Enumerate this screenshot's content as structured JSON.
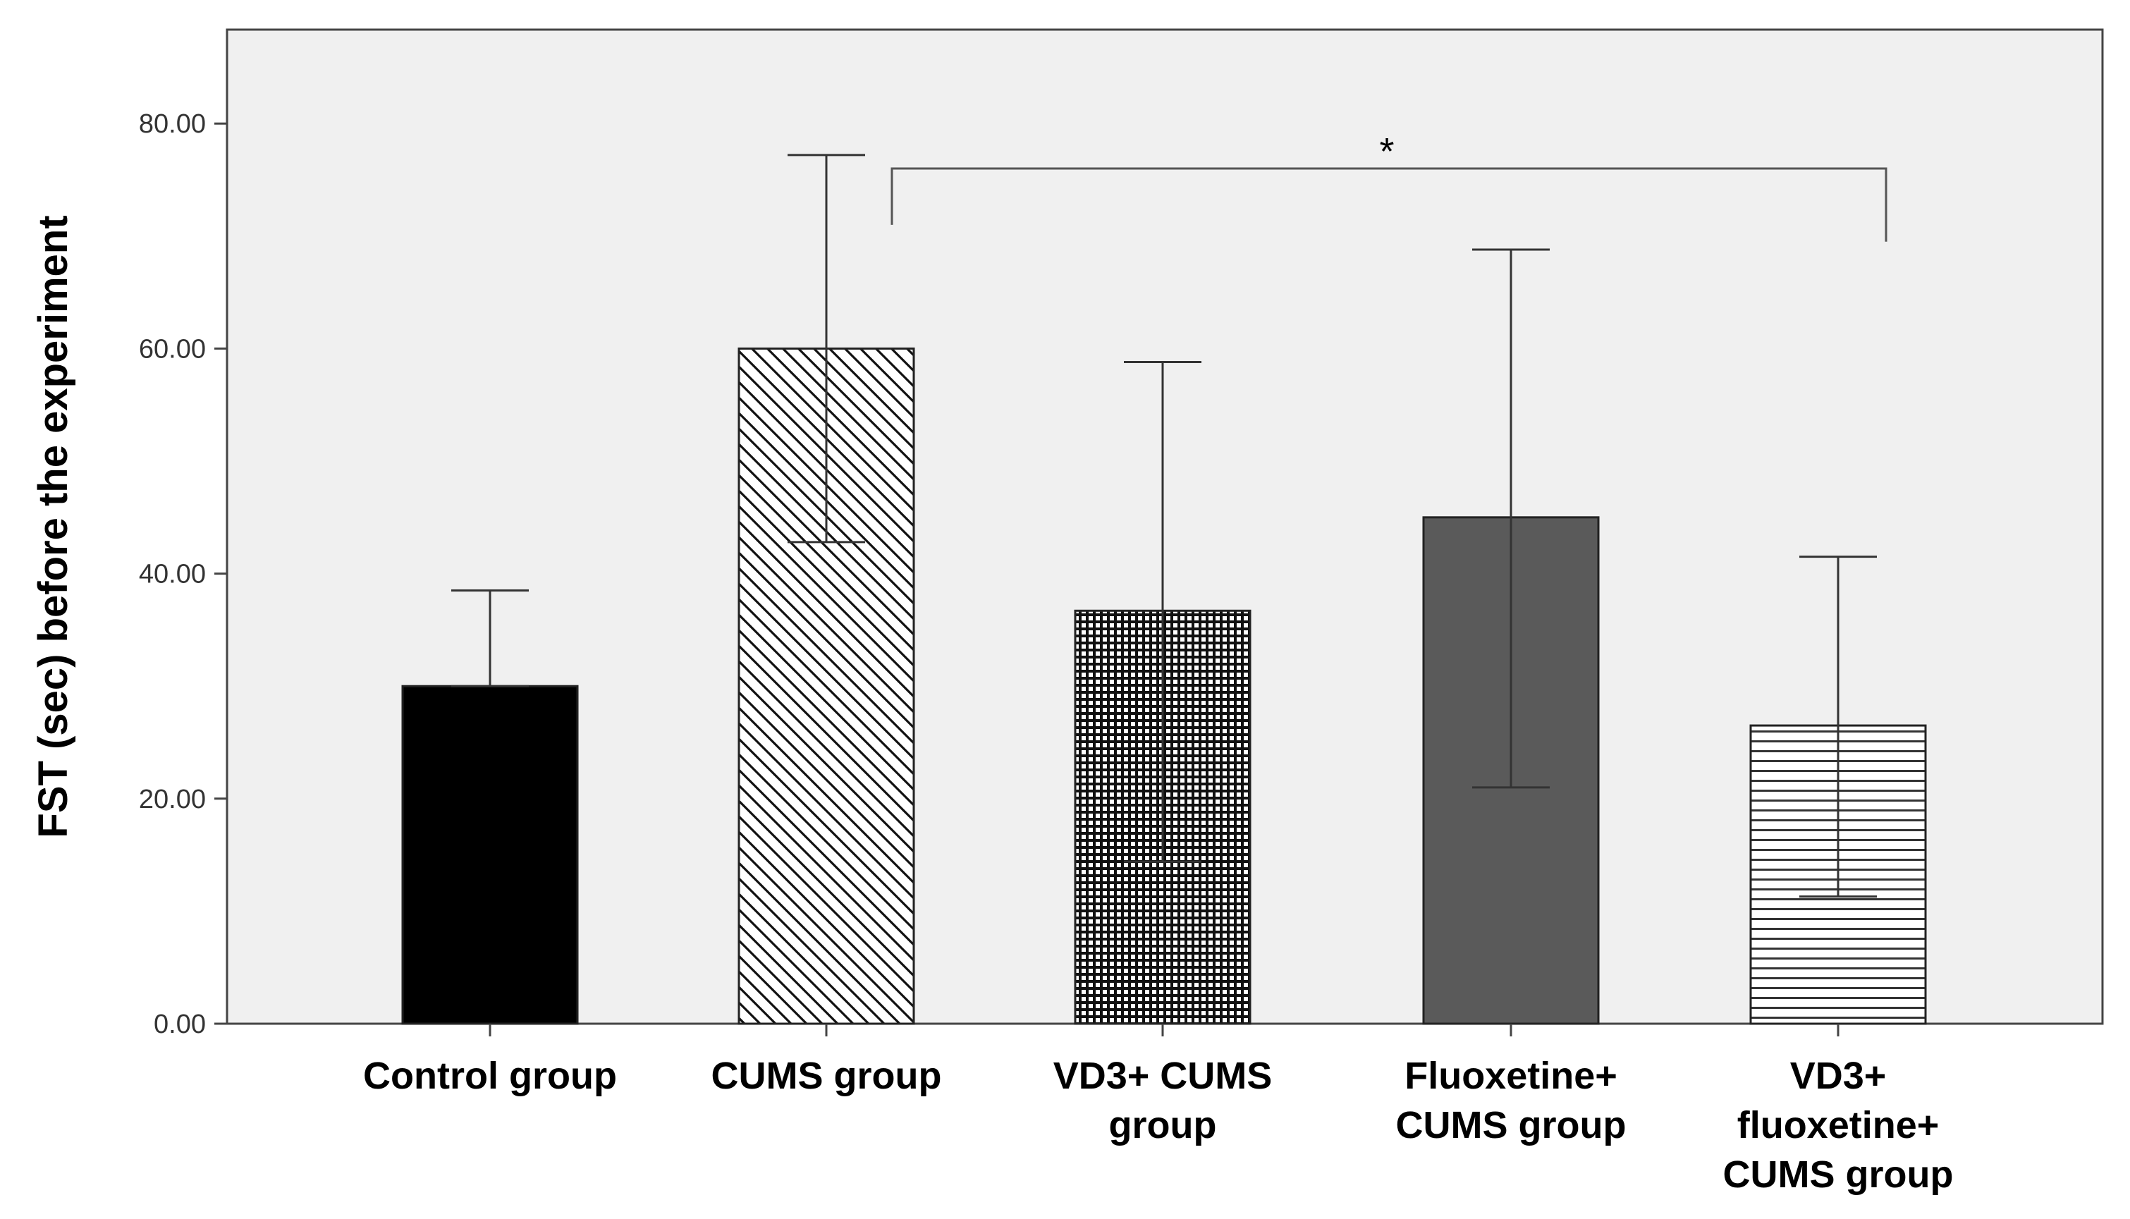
{
  "chart_data": {
    "type": "bar",
    "title": "",
    "xlabel": "",
    "ylabel": "FST (sec) before the experiment",
    "ylim": [
      0,
      88
    ],
    "yticks": [
      "0.00",
      "20.00",
      "40.00",
      "60.00",
      "80.00"
    ],
    "ytick_values": [
      0,
      20,
      40,
      60,
      80
    ],
    "categories": [
      [
        "Control group"
      ],
      [
        "CUMS group"
      ],
      [
        "VD3+ CUMS",
        "group"
      ],
      [
        "Fluoxetine+",
        "CUMS group"
      ],
      [
        "VD3+",
        "fluoxetine+",
        "CUMS group"
      ]
    ],
    "values": [
      30,
      60,
      36.7,
      45,
      26.5
    ],
    "error_low": [
      30,
      42.8,
      14.4,
      21,
      11.3
    ],
    "error_high": [
      38.5,
      77.2,
      58.8,
      68.8,
      41.5
    ],
    "fills": [
      "solid-black",
      "diagonal-hatch",
      "fine-checker",
      "solid-gray",
      "horizontal-lines"
    ],
    "colors": {
      "black": "#000000",
      "dark_gray": "#5a5a5a",
      "plot_bg": "#f0f0f0"
    },
    "significance": {
      "from_index": 1,
      "to_index": 4,
      "label": "*",
      "bracket_y": 76,
      "left_drop_to": 71,
      "right_drop_to": 69.5
    }
  }
}
